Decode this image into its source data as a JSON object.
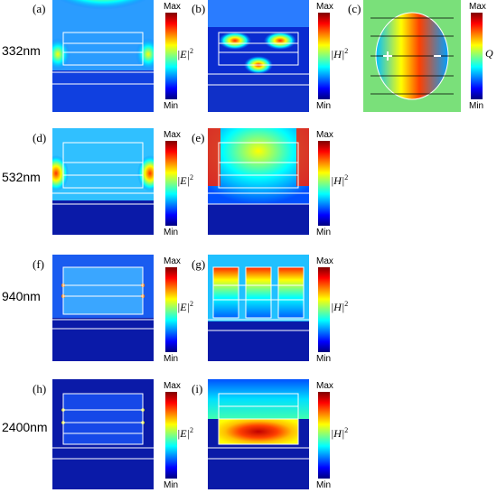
{
  "colors": {
    "background": "#0a1aa8",
    "colormap": [
      "#00007f",
      "#0000ff",
      "#0080ff",
      "#00ffff",
      "#80ff80",
      "#ffff00",
      "#ff8000",
      "#ff0000",
      "#7f0000"
    ]
  },
  "row_labels": [
    "332nm",
    "532nm",
    "940nm",
    "2400nm"
  ],
  "panels": [
    {
      "letter": "(a)",
      "quantity": "E"
    },
    {
      "letter": "(b)",
      "quantity": "H"
    },
    {
      "letter": "(c)",
      "quantity": "Q"
    },
    {
      "letter": "(d)",
      "quantity": "E"
    },
    {
      "letter": "(e)",
      "quantity": "H"
    },
    {
      "letter": "(f)",
      "quantity": "E"
    },
    {
      "letter": "(g)",
      "quantity": "H"
    },
    {
      "letter": "(h)",
      "quantity": "E"
    },
    {
      "letter": "(i)",
      "quantity": "H"
    }
  ],
  "colorbar": {
    "max": "Max",
    "min": "Min"
  },
  "quantity_labels": {
    "E": "|E|",
    "H": "|H|",
    "Q": "Q",
    "power": "2"
  }
}
